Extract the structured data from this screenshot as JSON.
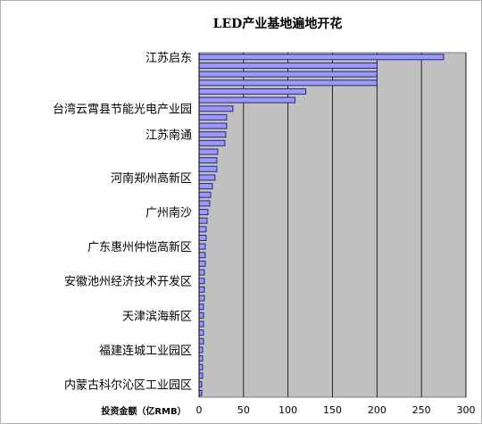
{
  "chart_data": {
    "type": "bar",
    "orientation": "horizontal",
    "title": "LED产业基地遍地开花",
    "xlabel": "投资金额（亿RMB）",
    "ylabel": "",
    "xlim": [
      0,
      300
    ],
    "xticks": [
      0,
      50,
      100,
      150,
      200,
      250,
      300
    ],
    "grid": "vertical",
    "legend": "none",
    "colors": {
      "bar_fill": "#9999ff",
      "bar_stroke": "#2a2a6a",
      "plot_bg": "#c0c0c0"
    },
    "categories": [
      "江苏启东",
      "",
      "",
      "",
      "",
      "",
      "台湾云霄县节能光电产业园",
      "",
      "",
      "江苏南通",
      "",
      "",
      "",
      "",
      "河南郑州高新区",
      "",
      "",
      "",
      "广州南沙",
      "",
      "",
      "",
      "广东惠州仲恺高新区",
      "",
      "",
      "",
      "安徽池州经济技术开发区",
      "",
      "",
      "",
      "天津滨海新区",
      "",
      "",
      "",
      "福建连城工业园区",
      "",
      "",
      "",
      "内蒙古科尔沁区工业园区",
      ""
    ],
    "values": [
      275,
      200,
      200,
      200,
      120,
      108,
      38,
      31,
      31,
      30,
      29,
      21,
      20,
      20,
      18,
      15,
      13,
      12,
      10,
      9,
      8,
      8,
      7,
      7,
      7,
      6,
      6,
      6,
      6,
      5,
      5,
      5,
      5,
      5,
      4,
      4,
      4,
      4,
      3,
      3
    ],
    "category_labels_shown": [
      "江苏启东",
      "台湾云霄县节能光电产业园",
      "江苏南通",
      "河南郑州高新区",
      "广州南沙",
      "广东惠州仲恺高新区",
      "安徽池州经济技术开发区",
      "天津滨海新区",
      "福建连城工业园区",
      "内蒙古科尔沁区工业园区"
    ]
  }
}
